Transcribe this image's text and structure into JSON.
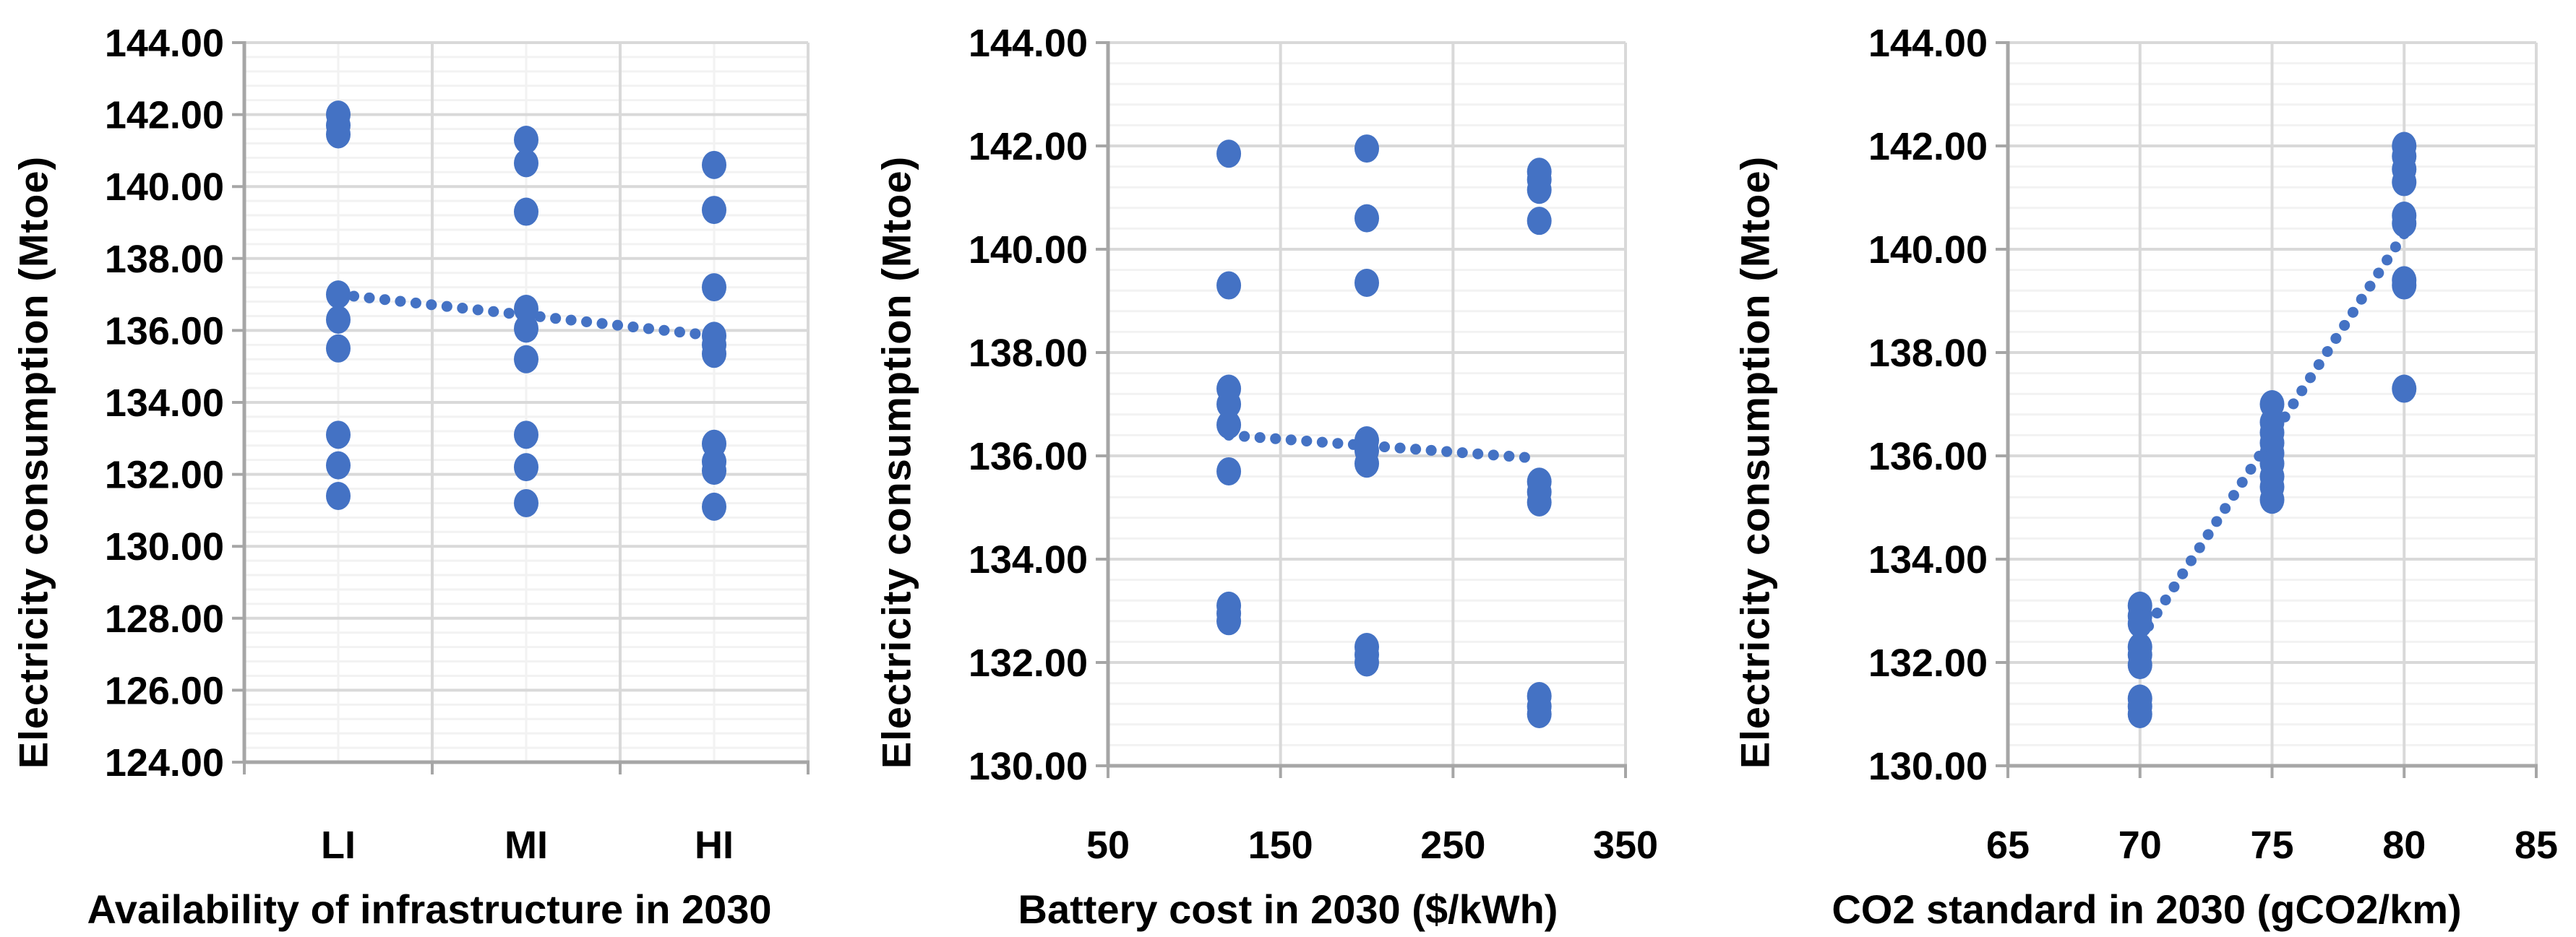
{
  "page_background": "#ffffff",
  "colors": {
    "marker": "#4472C4",
    "trend": "#4472C4",
    "grid_major": "#D9D9D9",
    "grid_minor": "#F2F2F2",
    "axis": "#A6A6A6",
    "text": "#000000"
  },
  "chart_data": [
    {
      "type": "scatter",
      "title": "",
      "xlabel": "Availability of infrastructure in 2030",
      "ylabel": "Electricity consumption (Mtoe)",
      "x_mode": "category",
      "categories": [
        "LI",
        "MI",
        "HI"
      ],
      "ylim": [
        124,
        144
      ],
      "y_major": 2,
      "y_minor": 0.4,
      "y_tick_labels": [
        "124.00",
        "126.00",
        "128.00",
        "130.00",
        "132.00",
        "134.00",
        "136.00",
        "138.00",
        "140.00",
        "142.00",
        "144.00"
      ],
      "grid": true,
      "legend": "none",
      "points": [
        {
          "x": "LI",
          "values": [
            142.0,
            141.7,
            141.45,
            137.0,
            136.3,
            135.5,
            133.1,
            132.25,
            131.4
          ]
        },
        {
          "x": "MI",
          "values": [
            141.3,
            140.65,
            139.3,
            136.6,
            136.05,
            135.2,
            133.1,
            132.2,
            131.2
          ]
        },
        {
          "x": "HI",
          "values": [
            140.6,
            139.35,
            137.2,
            135.85,
            135.6,
            135.35,
            132.85,
            132.35,
            132.1,
            131.1
          ]
        }
      ],
      "trend": {
        "style": "dotted",
        "from": [
          "LI",
          137.0
        ],
        "to": [
          "HI",
          135.85
        ]
      }
    },
    {
      "type": "scatter",
      "title": "",
      "xlabel": "Battery cost in 2030 ($/kWh)",
      "ylabel": "Electricity consumption (Mtoe)",
      "x_mode": "numeric",
      "xlim": [
        50,
        350
      ],
      "x_ticks": [
        50,
        150,
        250,
        350
      ],
      "x_tick_labels": [
        "50",
        "150",
        "250",
        "350"
      ],
      "x_minor": 20,
      "ylim": [
        130,
        144
      ],
      "y_major": 2,
      "y_minor": 0.4,
      "y_tick_labels": [
        "130.00",
        "132.00",
        "134.00",
        "136.00",
        "138.00",
        "140.00",
        "142.00",
        "144.00"
      ],
      "grid": true,
      "legend": "none",
      "points": [
        {
          "x": 120,
          "values": [
            141.85,
            139.3,
            137.3,
            137.0,
            136.6,
            135.7,
            133.1,
            132.95,
            132.8
          ]
        },
        {
          "x": 200,
          "values": [
            141.95,
            140.6,
            139.35,
            136.3,
            136.1,
            135.85,
            132.3,
            132.15,
            132.0
          ]
        },
        {
          "x": 300,
          "values": [
            141.5,
            141.35,
            141.15,
            140.55,
            135.5,
            135.3,
            135.1,
            131.35,
            131.15,
            131.0
          ]
        }
      ],
      "trend": {
        "style": "dotted",
        "from": [
          120,
          136.4
        ],
        "to": [
          300,
          135.95
        ]
      }
    },
    {
      "type": "scatter",
      "title": "",
      "xlabel": "CO2 standard in 2030 (gCO2/km)",
      "ylabel": "Electricity consumption (Mtoe)",
      "x_mode": "numeric",
      "xlim": [
        65,
        85
      ],
      "x_ticks": [
        65,
        70,
        75,
        80,
        85
      ],
      "x_tick_labels": [
        "65",
        "70",
        "75",
        "80",
        "85"
      ],
      "x_minor": 1,
      "ylim": [
        130,
        144
      ],
      "y_major": 2,
      "y_minor": 0.4,
      "y_tick_labels": [
        "130.00",
        "132.00",
        "134.00",
        "136.00",
        "138.00",
        "140.00",
        "142.00",
        "144.00"
      ],
      "grid": true,
      "legend": "none",
      "points": [
        {
          "x": 70,
          "values": [
            133.1,
            132.9,
            132.75,
            132.3,
            132.15,
            131.95,
            131.3,
            131.15,
            131.0
          ]
        },
        {
          "x": 75,
          "values": [
            137.0,
            136.65,
            136.45,
            136.25,
            136.05,
            135.85,
            135.6,
            135.4,
            135.15
          ]
        },
        {
          "x": 80,
          "values": [
            142.0,
            141.8,
            141.55,
            141.3,
            140.65,
            140.5,
            139.4,
            139.3,
            137.3
          ]
        }
      ],
      "trend": {
        "style": "dotted",
        "from": [
          70,
          132.45
        ],
        "to": [
          80,
          140.3
        ]
      }
    }
  ]
}
